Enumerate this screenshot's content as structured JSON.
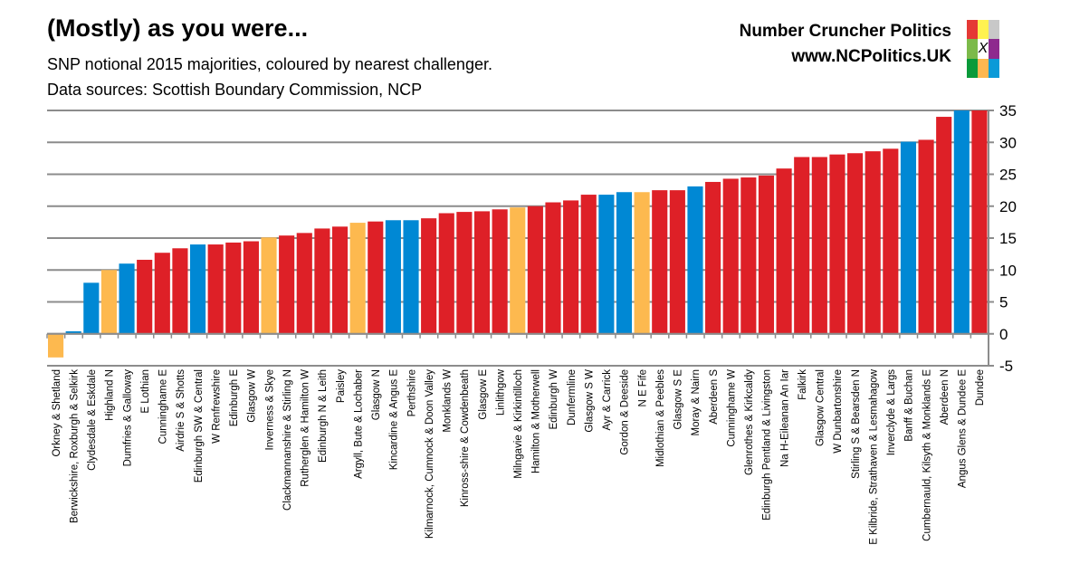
{
  "header": {
    "title": "(Mostly) as you were...",
    "subtitle": "SNP notional 2015 majorities, coloured by nearest challenger.",
    "sources": "Data sources: Scottish Boundary Commission, NCP",
    "brand": "Number Cruncher Politics",
    "url": "www.NCPolitics.UK",
    "logo_mark": "X",
    "logo_colors": [
      "#e53935",
      "#fff250",
      "#c8c8c8",
      "#7cba4a",
      "#ffffff",
      "#8e2a8e",
      "#0a9a3a",
      "#fdb750",
      "#0a9ad8"
    ]
  },
  "colors": {
    "red": "#de2027",
    "blue": "#0088d4",
    "orange": "#fdb94f",
    "grid": "#8c8c8c"
  },
  "chart_data": {
    "type": "bar",
    "title": "",
    "xlabel": "",
    "ylabel": "",
    "ylim": [
      -5,
      35
    ],
    "yticks": [
      "35",
      "30",
      "25",
      "20",
      "15",
      "10",
      "5",
      "0",
      "-5"
    ],
    "ytick_values": [
      35,
      30,
      25,
      20,
      15,
      10,
      5,
      0,
      -5
    ],
    "y_axis_side": "right",
    "grid": true,
    "categories": [
      "Orkney & Shetland",
      "Berwickshire, Roxburgh & Selkirk",
      "Clydesdale & Eskdale",
      "Highland N",
      "Dumfries & Galloway",
      "E Lothian",
      "Cunninghame E",
      "Airdrie S & Shotts",
      "Edinburgh SW & Central",
      "W Renfrewshire",
      "Edinburgh E",
      "Glasgow W",
      "Inverness & Skye",
      "Clackmannanshire & Stirling N",
      "Rutherglen & Hamilton W",
      "Edinburgh N & Leith",
      "Paisley",
      "Argyll, Bute & Lochaber",
      "Glasgow N",
      "Kincardine & Angus E",
      "Perthshire",
      "Kilmarnock, Cumnock & Doon Valley",
      "Monklands W",
      "Kinross-shire & Cowdenbeath",
      "Glasgow E",
      "Linlithgow",
      "Milngavie & Kirkintilloch",
      "Hamilton & Motherwell",
      "Edinburgh W",
      "Dunfermline",
      "Glasgow S W",
      "Ayr & Carrick",
      "Gordon & Deeside",
      "N E Fife",
      "Midlothian & Peebles",
      "Glasgow S E",
      "Moray & Nairn",
      "Aberdeen S",
      "Cunninghame W",
      "Glenrothes & Kirkcaldy",
      "Edinburgh Pentland & Livingston",
      "Na H-Eileanan An Iar",
      "Falkirk",
      "Glasgow Central",
      "W Dunbartonshire",
      "Stirling S & Bearsden N",
      "E Kilbride, Strathaven & Lesmahagow",
      "Inverclyde & Largs",
      "Banff & Buchan",
      "Cumbernauld, Kilsyth & Monklands E",
      "Aberdeen N",
      "Angus Glens & Dundee E",
      "Dundee"
    ],
    "values": [
      -3.7,
      0.4,
      8.0,
      10.0,
      11.0,
      11.6,
      12.7,
      13.4,
      14.0,
      14.0,
      14.3,
      14.5,
      15.1,
      15.4,
      15.8,
      16.5,
      16.8,
      17.4,
      17.6,
      17.8,
      17.8,
      18.1,
      18.9,
      19.1,
      19.2,
      19.5,
      19.8,
      20.0,
      20.6,
      20.9,
      21.8,
      21.8,
      22.2,
      22.2,
      22.5,
      22.5,
      23.1,
      23.8,
      24.3,
      24.5,
      24.8,
      25.9,
      27.7,
      27.7,
      28.1,
      28.3,
      28.6,
      29.0,
      30.1,
      30.4,
      34.0,
      35.0,
      35.0
    ],
    "challenger_color": [
      "orange",
      "blue",
      "blue",
      "orange",
      "blue",
      "red",
      "red",
      "red",
      "blue",
      "red",
      "red",
      "red",
      "orange",
      "red",
      "red",
      "red",
      "red",
      "orange",
      "red",
      "blue",
      "blue",
      "red",
      "red",
      "red",
      "red",
      "red",
      "orange",
      "red",
      "red",
      "red",
      "red",
      "blue",
      "blue",
      "orange",
      "red",
      "red",
      "blue",
      "red",
      "red",
      "red",
      "red",
      "red",
      "red",
      "red",
      "red",
      "red",
      "red",
      "red",
      "blue",
      "red",
      "red",
      "blue",
      "red"
    ]
  }
}
